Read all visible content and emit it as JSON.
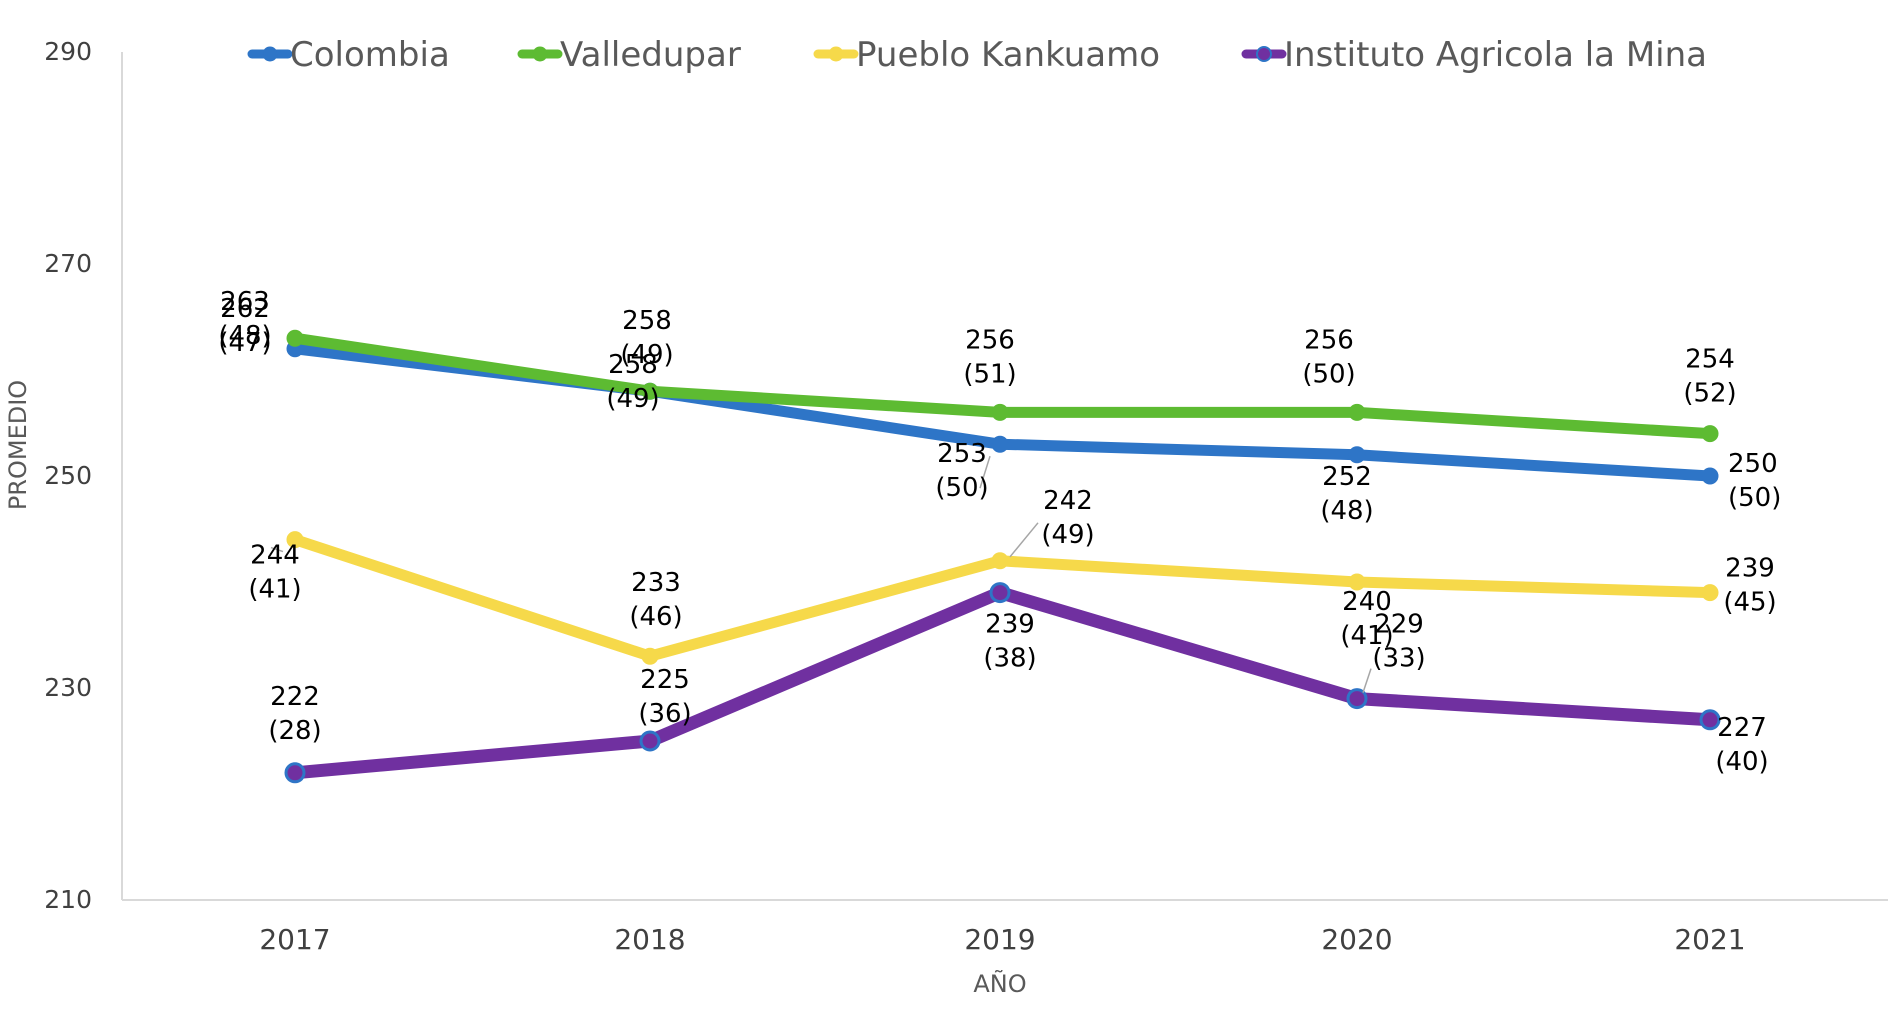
{
  "chart_data": {
    "type": "line",
    "title": "",
    "xlabel": "AÑO",
    "ylabel": "PROMEDIO",
    "categories": [
      "2017",
      "2018",
      "2019",
      "2020",
      "2021"
    ],
    "ylim": [
      210,
      290
    ],
    "yticks": [
      210,
      230,
      250,
      270,
      290
    ],
    "legend_position": "top",
    "grid": false,
    "series": [
      {
        "name": "Colombia",
        "color": "#2E75C7",
        "values": [
          262,
          258,
          253,
          252,
          250
        ],
        "labels": [
          "262",
          "258",
          "253",
          "252",
          "250"
        ],
        "sublabels": [
          "(47)",
          "(49)",
          "(50)",
          "(48)",
          "(50)"
        ]
      },
      {
        "name": "Valledupar",
        "color": "#5DBB32",
        "values": [
          263,
          258,
          256,
          256,
          254
        ],
        "labels": [
          "263",
          "258",
          "256",
          "256",
          "254"
        ],
        "sublabels": [
          "(48)",
          "(49)",
          "(51)",
          "(50)",
          "(52)"
        ]
      },
      {
        "name": "Pueblo Kankuamo",
        "color": "#F6D94A",
        "values": [
          244,
          233,
          242,
          240,
          239
        ],
        "labels": [
          "244",
          "233",
          "242",
          "240",
          "239"
        ],
        "sublabels": [
          "(41)",
          "(46)",
          "(49)",
          "(41)",
          "(45)"
        ]
      },
      {
        "name": "Instituto Agricola la Mina",
        "color": "#7030A0",
        "marker_edge": "#2E75C7",
        "values": [
          222,
          225,
          239,
          229,
          227
        ],
        "labels": [
          "222",
          "225",
          "239",
          "229",
          "227"
        ],
        "sublabels": [
          "(28)",
          "(36)",
          "(38)",
          "(33)",
          "(40)"
        ]
      }
    ]
  }
}
